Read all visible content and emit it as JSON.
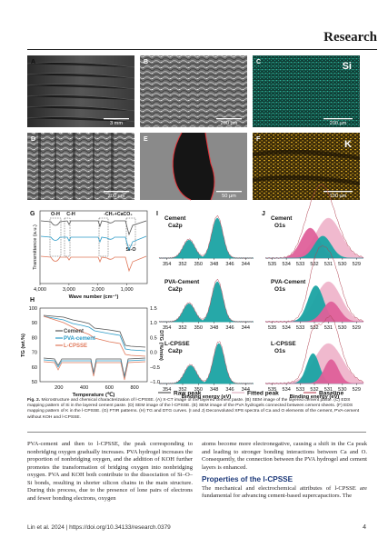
{
  "header": {
    "journal": "Research"
  },
  "figure": {
    "panels": [
      {
        "letter": "A",
        "scale_bar": "3 mm"
      },
      {
        "letter": "B",
        "scale_bar": "200 µm"
      },
      {
        "letter": "C",
        "scale_bar": "200 µm",
        "element": "Si"
      },
      {
        "letter": "D",
        "scale_bar": "200 µm"
      },
      {
        "letter": "E",
        "scale_bar": "50 µm"
      },
      {
        "letter": "F",
        "scale_bar": "100 µm",
        "element": "K"
      }
    ],
    "colors": {
      "cement": "#555555",
      "pva": "#2b9bc7",
      "lcpsse": "#e0785a",
      "teal": "#1ba4a4",
      "pink": "#e0609a",
      "light_pink": "#f0b6cc",
      "si_map": "#1e9a84",
      "k_map": "#c89a1c"
    }
  },
  "chart_data": [
    {
      "panel": "G",
      "type": "line",
      "ylabel": "Transmittance (a.u.)",
      "xlabel": "Wave number (cm⁻¹)",
      "xticks": [
        "4,000",
        "3,000",
        "2,000",
        "1,000"
      ],
      "xlim": [
        4000,
        300
      ],
      "annotations": [
        "O-H",
        "C-H",
        "-CH₂+CaCO₃",
        "Si-O"
      ]
    },
    {
      "panel": "H",
      "type": "line",
      "ylabel": "TG (wt.%)",
      "y2label": "DTG (%/min)",
      "xlabel": "Temperature (℃)",
      "xticks": [
        "200",
        "400",
        "600",
        "800"
      ],
      "yticks": [
        "50",
        "60",
        "70",
        "80",
        "90",
        "100"
      ],
      "y2ticks": [
        "1.5",
        "1.0",
        "0.5",
        "0.0",
        "-0.5",
        "-1.0"
      ],
      "ylim": [
        50,
        100
      ],
      "y2lim": [
        -1.0,
        1.5
      ],
      "legend": [
        "Cement",
        "PVA-cement",
        "L-CPSSE"
      ]
    },
    {
      "panel": "I",
      "type": "line",
      "xlabel": "Binding energy (eV)",
      "xticks": [
        "354",
        "352",
        "350",
        "348",
        "346",
        "344"
      ],
      "xlim": [
        355,
        343
      ],
      "subplots": [
        {
          "label_line1": "Cement",
          "label_line2": "Ca2p",
          "peaks": [
            {
              "center": 351.2,
              "color": "teal"
            },
            {
              "center": 347.6,
              "color": "teal"
            }
          ]
        },
        {
          "label_line1": "PVA-Cement",
          "label_line2": "Ca2p",
          "peaks": [
            {
              "center": 351.2,
              "color": "teal"
            },
            {
              "center": 347.6,
              "color": "teal"
            }
          ]
        },
        {
          "label_line1": "L-CPSSE",
          "label_line2": "Ca2p",
          "peaks": [
            {
              "center": 351.0,
              "color": "teal"
            },
            {
              "center": 347.4,
              "color": "teal"
            }
          ]
        }
      ]
    },
    {
      "panel": "J",
      "type": "line",
      "xlabel": "Binding energy (eV)",
      "xticks": [
        "535",
        "534",
        "533",
        "532",
        "531",
        "530",
        "529"
      ],
      "xlim": [
        535.5,
        528.5
      ],
      "subplots": [
        {
          "label_line1": "Cement",
          "label_line2": "O1s"
        },
        {
          "label_line1": "PVA-Cement",
          "label_line2": "O1s"
        },
        {
          "label_line1": "L-CPSSE",
          "label_line2": "O1s"
        }
      ],
      "legend": [
        "Raw peak",
        "Fitted peak",
        "Baseline"
      ]
    }
  ],
  "caption": {
    "label": "Fig. 2.",
    "text": " Microstructure and chemical characterization of l-CPSSE. (A) X-CT image of the layered cement paste. (B) SEM image of the layered cement paste. (C) EDS mapping pattern of Si in the layered cement paste. (D) SEM image of the l-CPSSE. (E) SEM image of the PVA hydrogels connected between cement sheets. (F) EDS mapping pattern of K in the l-CPSSE. (G) FTIR patterns. (H) TG and DTG curves. (I and J) Deconvoluted XPS spectra of Ca and O elements of the cement, PVA-cement without KOH and l-CPSSE."
  },
  "body": {
    "col1": "PVA-cement and then to l-CPSSE, the peak corresponding to nonbridging oxygen gradually increases. PVA hydrogel increases the proportion of nonbridging oxygen, and the addition of KOH further promotes the transformation of bridging oxygen into nonbridging oxygen. PVA and KOH both contribute to the dissociation of Si–O–Si bonds, resulting in shorter silicon chains in the main structure. During this process, due to the presence of lone pairs of electrons and fewer bonding electrons, oxygen",
    "col2_top": "atoms become more electronegative, causing a shift in the Ca peak and leading to stronger bonding interactions between Ca and O. Consequently, the connection between the PVA hydrogel and cement layers is enhanced.",
    "section_heading": "Properties of the l-CPSSE",
    "col2_bottom": "The mechanical and electrochemical attributes of l-CPSSE are fundamental for advancing cement-based supercapacitors. The"
  },
  "footer": {
    "citation": "Lin et al. 2024 | https://doi.org/10.34133/research.0379",
    "page": "4"
  }
}
